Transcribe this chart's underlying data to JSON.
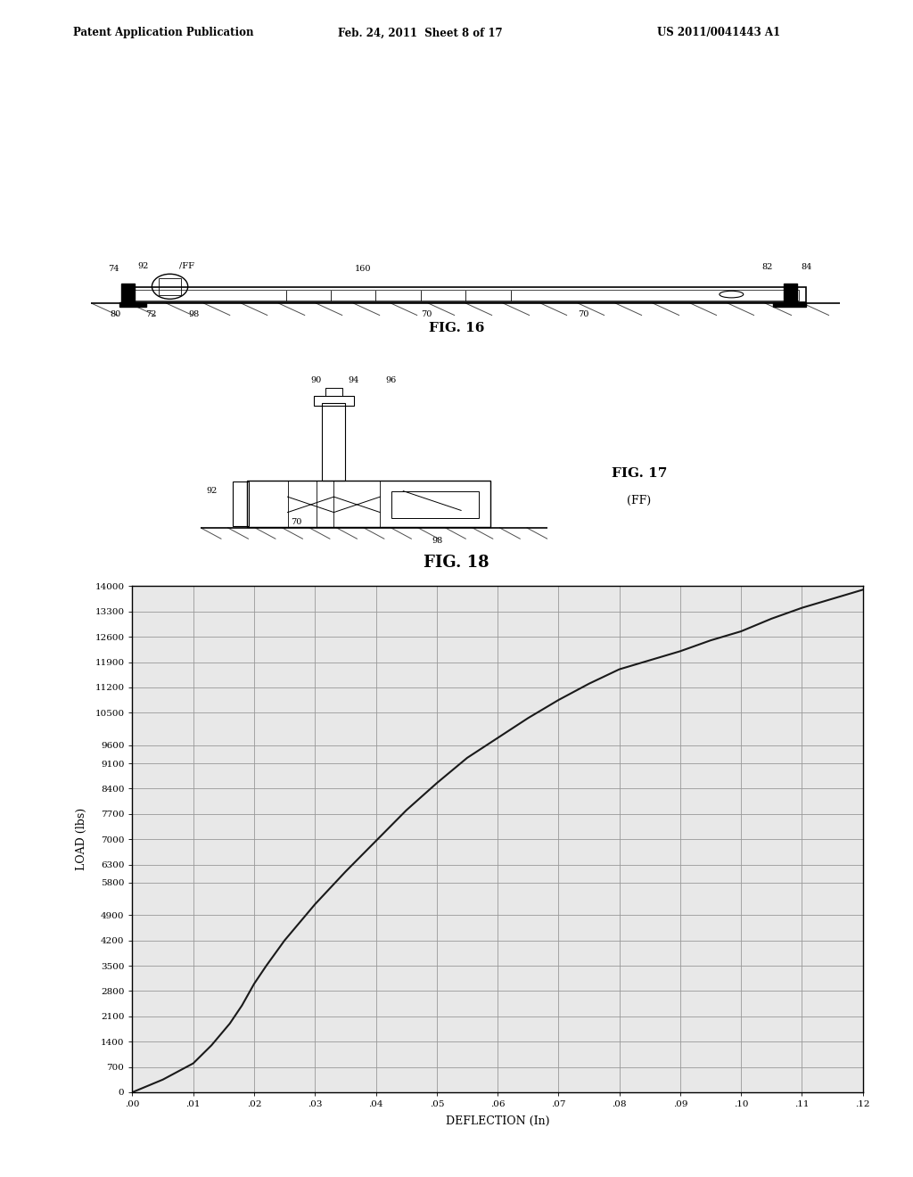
{
  "header_left": "Patent Application Publication",
  "header_center": "Feb. 24, 2011  Sheet 8 of 17",
  "header_right": "US 2011/0041443 A1",
  "fig16_label": "FIG. 16",
  "fig17_label": "FIG. 17",
  "fig17_sub": "(FF)",
  "fig18_label": "FIG. 18",
  "chart": {
    "xlabel": "DEFLECTION (In)",
    "ylabel": "LOAD (lbs)",
    "yticks": [
      0,
      700,
      1400,
      2100,
      2800,
      3500,
      4200,
      4900,
      5800,
      6300,
      7000,
      7700,
      8400,
      9100,
      9600,
      10500,
      11200,
      11900,
      12600,
      13300,
      14000
    ],
    "xticks": [
      0.0,
      0.01,
      0.02,
      0.03,
      0.04,
      0.05,
      0.06,
      0.07,
      0.08,
      0.09,
      0.1,
      0.11,
      0.12
    ],
    "xlim": [
      0.0,
      0.12
    ],
    "ylim": [
      0,
      14000
    ],
    "curve_x": [
      0.0,
      0.005,
      0.01,
      0.013,
      0.016,
      0.018,
      0.02,
      0.022,
      0.025,
      0.03,
      0.035,
      0.04,
      0.045,
      0.05,
      0.055,
      0.06,
      0.065,
      0.07,
      0.075,
      0.08,
      0.085,
      0.09,
      0.095,
      0.1,
      0.105,
      0.11,
      0.115,
      0.12
    ],
    "curve_y": [
      0,
      350,
      800,
      1300,
      1900,
      2400,
      3000,
      3500,
      4200,
      5200,
      6100,
      6950,
      7800,
      8550,
      9250,
      9800,
      10350,
      10850,
      11300,
      11700,
      11950,
      12200,
      12500,
      12750,
      13100,
      13400,
      13650,
      13900
    ],
    "line_color": "#1a1a1a",
    "grid_color": "#999999",
    "bg_color": "#ffffff",
    "tick_label_fontsize": 7.5,
    "axis_label_fontsize": 9
  }
}
